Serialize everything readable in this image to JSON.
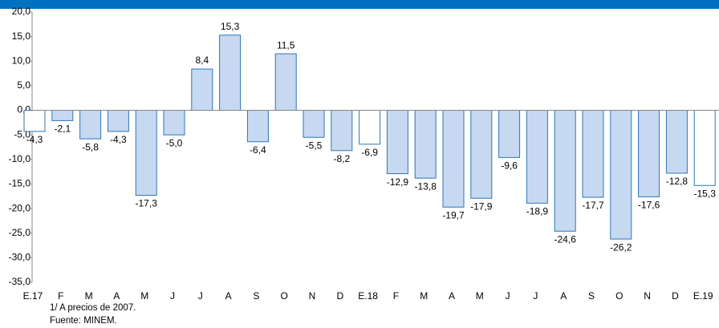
{
  "chart_data": {
    "type": "bar",
    "categories": [
      "E.17",
      "F",
      "M",
      "A",
      "M",
      "J",
      "J",
      "A",
      "S",
      "O",
      "N",
      "D",
      "E.18",
      "F",
      "M",
      "A",
      "M",
      "J",
      "J",
      "A",
      "S",
      "O",
      "N",
      "D",
      "E.19"
    ],
    "values": [
      -4.3,
      -2.1,
      -5.8,
      -4.3,
      -17.3,
      -5.0,
      8.4,
      15.3,
      -6.4,
      11.5,
      -5.5,
      -8.2,
      -6.9,
      -12.9,
      -13.8,
      -19.7,
      -17.9,
      -9.6,
      -18.9,
      -24.6,
      -17.7,
      -26.2,
      -17.6,
      -12.8,
      -15.3
    ],
    "value_labels": [
      "-4,3",
      "-2,1",
      "-5,8",
      "-4,3",
      "-17,3",
      "-5,0",
      "8,4",
      "15,3",
      "-6,4",
      "11,5",
      "-5,5",
      "-8,2",
      "-6,9",
      "-12,9",
      "-13,8",
      "-19,7",
      "-17,9",
      "-9,6",
      "-18,9",
      "-24,6",
      "-17,7",
      "-26,2",
      "-17,6",
      "-12,8",
      "-15,3"
    ],
    "colors": [
      "#ffffff",
      "#c6d9f1",
      "#c6d9f1",
      "#c6d9f1",
      "#c6d9f1",
      "#c6d9f1",
      "#c6d9f1",
      "#c6d9f1",
      "#c6d9f1",
      "#c6d9f1",
      "#c6d9f1",
      "#c6d9f1",
      "#ffffff",
      "#c6d9f1",
      "#c6d9f1",
      "#c6d9f1",
      "#c6d9f1",
      "#c6d9f1",
      "#c6d9f1",
      "#c6d9f1",
      "#c6d9f1",
      "#c6d9f1",
      "#c6d9f1",
      "#c6d9f1",
      "#ffffff"
    ],
    "edge_color": "#2e75b6",
    "ylim": [
      -35,
      20
    ],
    "yticks": [
      {
        "value": -35,
        "label": "-35,0"
      },
      {
        "value": -30,
        "label": "-30,0"
      },
      {
        "value": -25,
        "label": "-25,0"
      },
      {
        "value": -20,
        "label": "-20,0"
      },
      {
        "value": -15,
        "label": "-15,0"
      },
      {
        "value": -10,
        "label": "-10,0"
      },
      {
        "value": -5,
        "label": "-5,0"
      },
      {
        "value": 0,
        "label": "0,0"
      },
      {
        "value": 5,
        "label": "5,0"
      },
      {
        "value": 10,
        "label": "10,0"
      },
      {
        "value": 15,
        "label": "15,0"
      },
      {
        "value": 20,
        "label": "20,0"
      }
    ],
    "notes": [
      "1/ A precios de 2007.",
      "Fuente: MINEM."
    ]
  }
}
